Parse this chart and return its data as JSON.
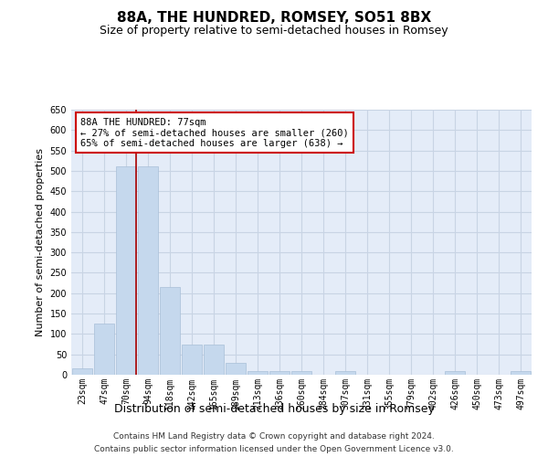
{
  "title": "88A, THE HUNDRED, ROMSEY, SO51 8BX",
  "subtitle": "Size of property relative to semi-detached houses in Romsey",
  "xlabel": "Distribution of semi-detached houses by size in Romsey",
  "ylabel": "Number of semi-detached properties",
  "categories": [
    "23sqm",
    "47sqm",
    "70sqm",
    "94sqm",
    "118sqm",
    "142sqm",
    "165sqm",
    "189sqm",
    "213sqm",
    "236sqm",
    "260sqm",
    "284sqm",
    "307sqm",
    "331sqm",
    "355sqm",
    "379sqm",
    "402sqm",
    "426sqm",
    "450sqm",
    "473sqm",
    "497sqm"
  ],
  "values": [
    15,
    125,
    510,
    510,
    215,
    75,
    75,
    30,
    10,
    10,
    10,
    0,
    10,
    0,
    0,
    0,
    0,
    10,
    0,
    0,
    10
  ],
  "bar_color": "#c5d8ed",
  "bar_edge_color": "#a8bfd8",
  "grid_color": "#c8d4e4",
  "bg_color": "#e4ecf8",
  "vline_color": "#aa0000",
  "annotation_text": "88A THE HUNDRED: 77sqm\n← 27% of semi-detached houses are smaller (260)\n65% of semi-detached houses are larger (638) →",
  "annotation_box_color": "#ffffff",
  "annotation_box_edge": "#cc0000",
  "footer1": "Contains HM Land Registry data © Crown copyright and database right 2024.",
  "footer2": "Contains public sector information licensed under the Open Government Licence v3.0.",
  "ylim": [
    0,
    650
  ],
  "yticks": [
    0,
    50,
    100,
    150,
    200,
    250,
    300,
    350,
    400,
    450,
    500,
    550,
    600,
    650
  ],
  "title_fontsize": 11,
  "subtitle_fontsize": 9,
  "xlabel_fontsize": 9,
  "ylabel_fontsize": 8,
  "tick_fontsize": 7,
  "annot_fontsize": 7.5,
  "footer_fontsize": 6.5
}
